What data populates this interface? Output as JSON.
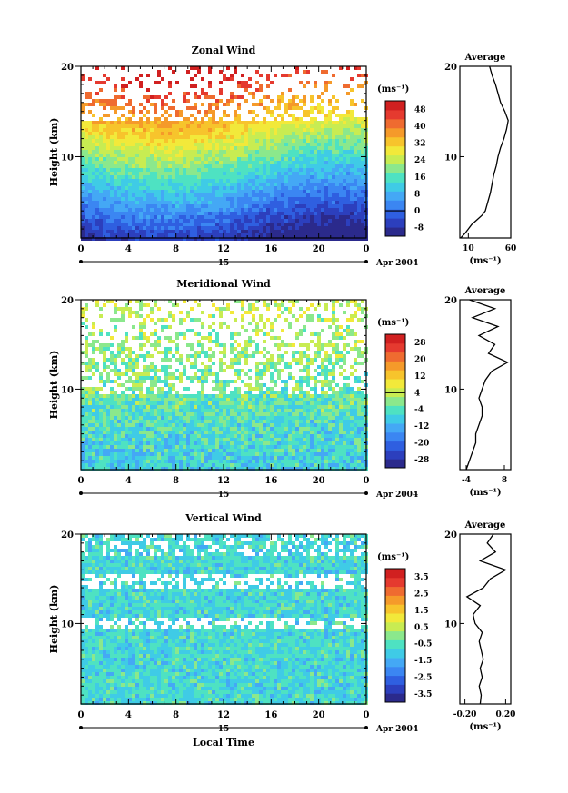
{
  "chart_data": [
    {
      "type": "heatmap",
      "title": "Zonal Wind",
      "ylabel": "Height (km)",
      "xlabel": "",
      "x_ticks": [
        "0",
        "4",
        "8",
        "12",
        "16",
        "20",
        "0"
      ],
      "y_ticks": [
        "20",
        "10"
      ],
      "xlim": [
        0,
        24
      ],
      "ylim": [
        1,
        20
      ],
      "date_label": "15",
      "month_label": "Apr 2004",
      "colorbar": {
        "unit": "(ms⁻¹)",
        "ticks": [
          "48",
          "40",
          "32",
          "24",
          "16",
          "8",
          "0",
          "-8"
        ],
        "range": [
          -12,
          52
        ],
        "colors": [
          "#2b2a8c",
          "#2c3fbd",
          "#2f5fe0",
          "#3b86f2",
          "#44a8f5",
          "#3fcbe6",
          "#4ee2c2",
          "#8be88c",
          "#c8ec52",
          "#f2e93a",
          "#f7c42c",
          "#f59a2a",
          "#ef6b30",
          "#e53a2f",
          "#d12020"
        ],
        "reference_tick": "0"
      },
      "profile": {
        "title": "Average",
        "x_ticks": [
          "10",
          "60"
        ],
        "xlim": [
          0,
          60
        ],
        "y_ticks": [
          "20",
          "10"
        ],
        "xlabel": "(ms⁻¹)",
        "heights_km": [
          1,
          1.5,
          2,
          2.5,
          3,
          3.5,
          4,
          5,
          6,
          7,
          8,
          9,
          10,
          11,
          12,
          13,
          14,
          15,
          16,
          17,
          18,
          19,
          20
        ],
        "values": [
          1,
          6,
          10,
          14,
          20,
          26,
          30,
          33,
          36,
          38,
          40,
          43,
          45,
          48,
          52,
          55,
          57,
          53,
          48,
          45,
          42,
          38,
          35
        ]
      }
    },
    {
      "type": "heatmap",
      "title": "Meridional Wind",
      "ylabel": "Height (km)",
      "xlabel": "",
      "x_ticks": [
        "0",
        "4",
        "8",
        "12",
        "16",
        "20",
        "0"
      ],
      "y_ticks": [
        "20",
        "10"
      ],
      "xlim": [
        0,
        24
      ],
      "ylim": [
        1,
        20
      ],
      "date_label": "15",
      "month_label": "Apr 2004",
      "colorbar": {
        "unit": "(ms⁻¹)",
        "ticks": [
          "28",
          "20",
          "12",
          "4",
          "-4",
          "-12",
          "-20",
          "-28"
        ],
        "range": [
          -32,
          32
        ],
        "colors": [
          "#2b2a8c",
          "#2c3fbd",
          "#2f5fe0",
          "#3b86f2",
          "#44a8f5",
          "#3fcbe6",
          "#4ee2c2",
          "#8be88c",
          "#c8ec52",
          "#f2e93a",
          "#f7c42c",
          "#f59a2a",
          "#ef6b30",
          "#e53a2f",
          "#d12020"
        ],
        "reference_tick": "4"
      },
      "profile": {
        "title": "Average",
        "x_ticks": [
          "-4",
          "8"
        ],
        "xlim": [
          -6,
          10
        ],
        "y_ticks": [
          "20",
          "10"
        ],
        "xlabel": "(ms⁻¹)",
        "heights_km": [
          1,
          2,
          3,
          4,
          5,
          6,
          7,
          8,
          9,
          10,
          11,
          12,
          13,
          14,
          15,
          16,
          17,
          18,
          19,
          20
        ],
        "values": [
          -4,
          -3,
          -2,
          -1,
          -1,
          0,
          1,
          1,
          0,
          1,
          2,
          4,
          9,
          3,
          5,
          0,
          6,
          -2,
          5,
          -3
        ]
      }
    },
    {
      "type": "heatmap",
      "title": "Vertical Wind",
      "ylabel": "Height (km)",
      "xlabel": "Local Time",
      "x_ticks": [
        "0",
        "4",
        "8",
        "12",
        "16",
        "20",
        "0"
      ],
      "y_ticks": [
        "20",
        "10"
      ],
      "xlim": [
        0,
        24
      ],
      "ylim": [
        1,
        20
      ],
      "date_label": "15",
      "month_label": "Apr 2004",
      "colorbar": {
        "unit": "(ms⁻¹)",
        "ticks": [
          "3.5",
          "2.5",
          "1.5",
          "0.5",
          "-0.5",
          "-1.5",
          "-2.5",
          "-3.5"
        ],
        "range": [
          -4,
          4
        ],
        "colors": [
          "#2b2a8c",
          "#2c3fbd",
          "#2f5fe0",
          "#3b86f2",
          "#44a8f5",
          "#3fcbe6",
          "#4ee2c2",
          "#8be88c",
          "#c8ec52",
          "#f2e93a",
          "#f7c42c",
          "#f59a2a",
          "#ef6b30",
          "#e53a2f",
          "#d12020"
        ],
        "reference_tick": ""
      },
      "profile": {
        "title": "Average",
        "x_ticks": [
          "-0.20",
          "0.20"
        ],
        "xlim": [
          -0.25,
          0.25
        ],
        "y_ticks": [
          "20",
          "10"
        ],
        "xlabel": "(ms⁻¹)",
        "heights_km": [
          1,
          2,
          3,
          4,
          5,
          6,
          7,
          8,
          9,
          10,
          11,
          12,
          13,
          14,
          15,
          16,
          17,
          18,
          19,
          20
        ],
        "values": [
          -0.05,
          -0.04,
          -0.06,
          -0.03,
          -0.05,
          -0.02,
          -0.04,
          -0.06,
          -0.03,
          -0.1,
          -0.12,
          -0.05,
          -0.18,
          -0.02,
          0.05,
          0.2,
          -0.05,
          0.1,
          0.02,
          0.08
        ]
      }
    }
  ]
}
